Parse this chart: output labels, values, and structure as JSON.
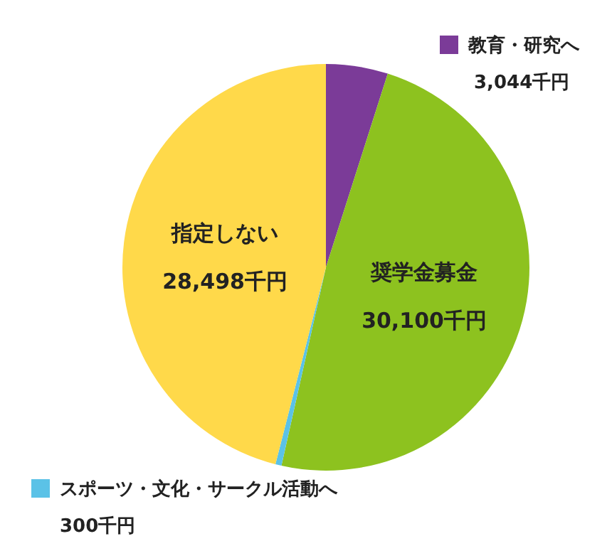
{
  "chart_data": {
    "type": "pie",
    "categories": [
      "教育・研究へ",
      "奨学金募金",
      "スポーツ・文化・サークル活動へ",
      "指定しない"
    ],
    "values": [
      3044,
      30100,
      300,
      28498
    ],
    "colors": [
      "#7b3b98",
      "#8dc21f",
      "#5bc2e7",
      "#ffd94a"
    ],
    "value_labels": [
      "3,044千円",
      "30,100千円",
      "300千円",
      "28,498千円"
    ],
    "legend": "top left"
  }
}
